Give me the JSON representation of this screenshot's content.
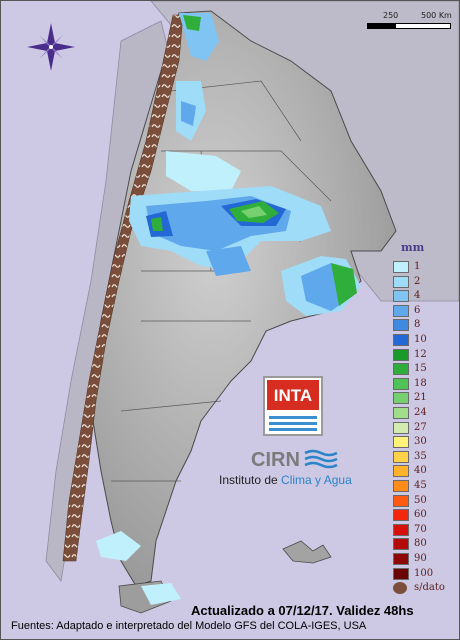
{
  "map": {
    "region": "Argentina",
    "colors": {
      "background": "#cdc9e4",
      "land_relief": "#a9a9a9",
      "neighbors": "#b8b6c4",
      "no_data": "#7a4e3a"
    }
  },
  "scale_bar": {
    "labels": [
      "250",
      "500 Km"
    ]
  },
  "compass": {
    "icon": "compass-rose-icon"
  },
  "legend": {
    "unit": "mm",
    "items": [
      {
        "label": "1",
        "color": "#bff0fb"
      },
      {
        "label": "2",
        "color": "#9fdcf7"
      },
      {
        "label": "4",
        "color": "#7fc4f2"
      },
      {
        "label": "6",
        "color": "#60a8ec"
      },
      {
        "label": "8",
        "color": "#3f8ae0"
      },
      {
        "label": "10",
        "color": "#2468d6"
      },
      {
        "label": "12",
        "color": "#1a9a2a"
      },
      {
        "label": "15",
        "color": "#2fae3b"
      },
      {
        "label": "18",
        "color": "#4ec254"
      },
      {
        "label": "21",
        "color": "#76d06f"
      },
      {
        "label": "24",
        "color": "#a0de8c"
      },
      {
        "label": "27",
        "color": "#d2ecb0"
      },
      {
        "label": "30",
        "color": "#fff27a"
      },
      {
        "label": "35",
        "color": "#ffd24a"
      },
      {
        "label": "40",
        "color": "#ffb22a"
      },
      {
        "label": "45",
        "color": "#ff8c1a"
      },
      {
        "label": "50",
        "color": "#ff5a12"
      },
      {
        "label": "60",
        "color": "#f3260e"
      },
      {
        "label": "70",
        "color": "#d8100c"
      },
      {
        "label": "80",
        "color": "#b40a0a"
      },
      {
        "label": "90",
        "color": "#8e0707"
      },
      {
        "label": "100",
        "color": "#6a0404"
      },
      {
        "label": "s/dato",
        "color": "#7a4e3a"
      }
    ]
  },
  "logos": {
    "inta": "INTA",
    "cirn": "CIRN",
    "institute_prefix": "Instituto de ",
    "institute_highlight": "Clima y Agua"
  },
  "footer": {
    "updated": "Actualizado a 07/12/17. Validez 48hs",
    "sources": "Fuentes: Adaptado e interpretado del Modelo GFS del COLA-IGES, USA"
  }
}
